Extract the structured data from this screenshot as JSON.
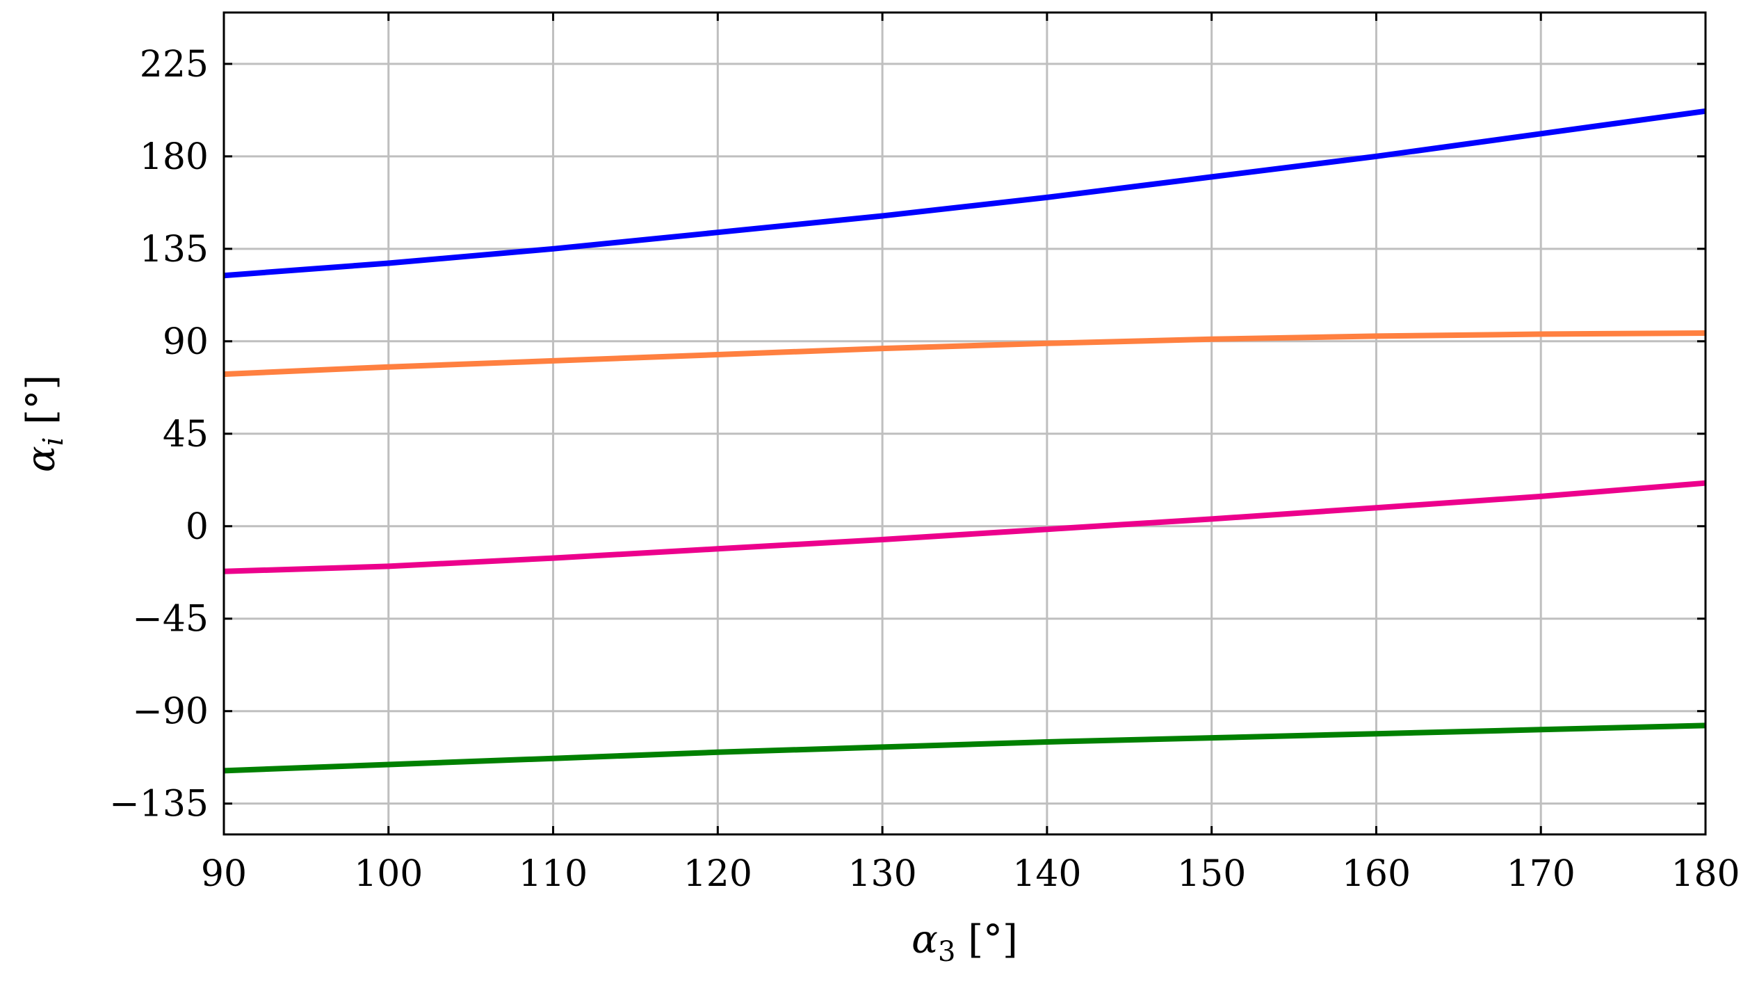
{
  "chart_data": {
    "type": "line",
    "title": "",
    "xlabel": {
      "symbol": "α",
      "subscript": "3",
      "unit": " [°]"
    },
    "ylabel": {
      "symbol": "α",
      "subscript": "i",
      "unit": " [°]"
    },
    "xlim": [
      90,
      180
    ],
    "ylim": [
      -150,
      250
    ],
    "grid": true,
    "legend": "none",
    "x_ticks": [
      90,
      100,
      110,
      120,
      130,
      140,
      150,
      160,
      170,
      180
    ],
    "x_tick_labels": [
      "90",
      "100",
      "110",
      "120",
      "130",
      "140",
      "150",
      "160",
      "170",
      "180"
    ],
    "y_ticks": [
      -135,
      -90,
      -45,
      0,
      45,
      90,
      135,
      180,
      225
    ],
    "y_tick_labels": [
      "−135",
      "−90",
      "−45",
      "0",
      "45",
      "90",
      "135",
      "180",
      "225"
    ],
    "x": [
      90,
      100,
      110,
      120,
      130,
      140,
      150,
      160,
      170,
      180
    ],
    "series": [
      {
        "color": "#0000ff",
        "values": [
          122,
          128,
          135,
          143,
          151,
          160,
          170,
          180,
          191,
          202
        ]
      },
      {
        "color": "#ff8040",
        "values": [
          74,
          77.5,
          80.5,
          83.5,
          86.5,
          89,
          91,
          92.5,
          93.5,
          94
        ]
      },
      {
        "color": "#ec008c",
        "values": [
          -22,
          -19.5,
          -15.5,
          -11,
          -6.5,
          -1.5,
          3.5,
          9,
          14.5,
          21
        ]
      },
      {
        "color": "#008000",
        "values": [
          -119,
          -116,
          -113,
          -110,
          -107.5,
          -105,
          -103,
          -101,
          -99,
          -97
        ]
      }
    ]
  }
}
